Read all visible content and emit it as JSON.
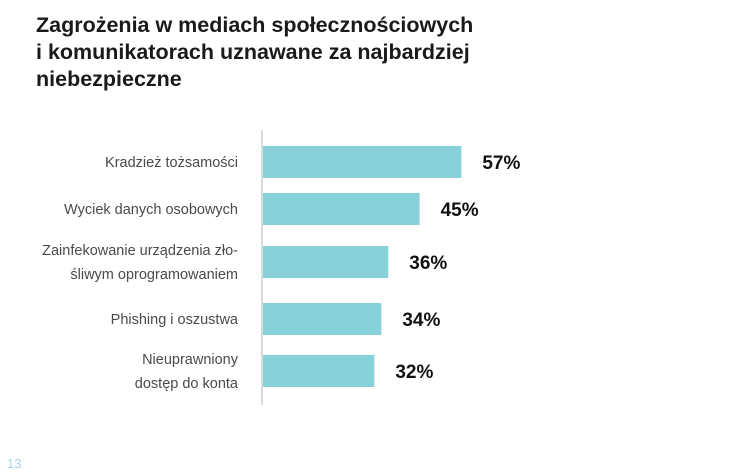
{
  "page_number": "13",
  "chart_data": {
    "type": "bar",
    "orientation": "horizontal",
    "title": "Zagrożenia w mediach społecznościowych i komunikatorach uznawane za najbardziej niebezpieczne",
    "title_lines": [
      "Zagrożenia w mediach społecznościowych",
      "i komunikatorach uznawane za najbardziej",
      "niebezpieczne"
    ],
    "categories": [
      [
        "Kradzież tożsamości"
      ],
      [
        "Wyciek danych osobowych"
      ],
      [
        "Zainfekowanie urządzenia zło-",
        "śliwym oprogramowaniem"
      ],
      [
        "Phishing i oszustwa"
      ],
      [
        "Nieuprawniony",
        "dostęp do konta"
      ]
    ],
    "values": [
      57,
      45,
      36,
      34,
      32
    ],
    "value_labels": [
      "57%",
      "45%",
      "36%",
      "34%",
      "32%"
    ],
    "unit": "%",
    "xlim": [
      0,
      100
    ],
    "grid": false,
    "bar_color": "#86D1DA",
    "axis_color": "#d9d9d9"
  }
}
